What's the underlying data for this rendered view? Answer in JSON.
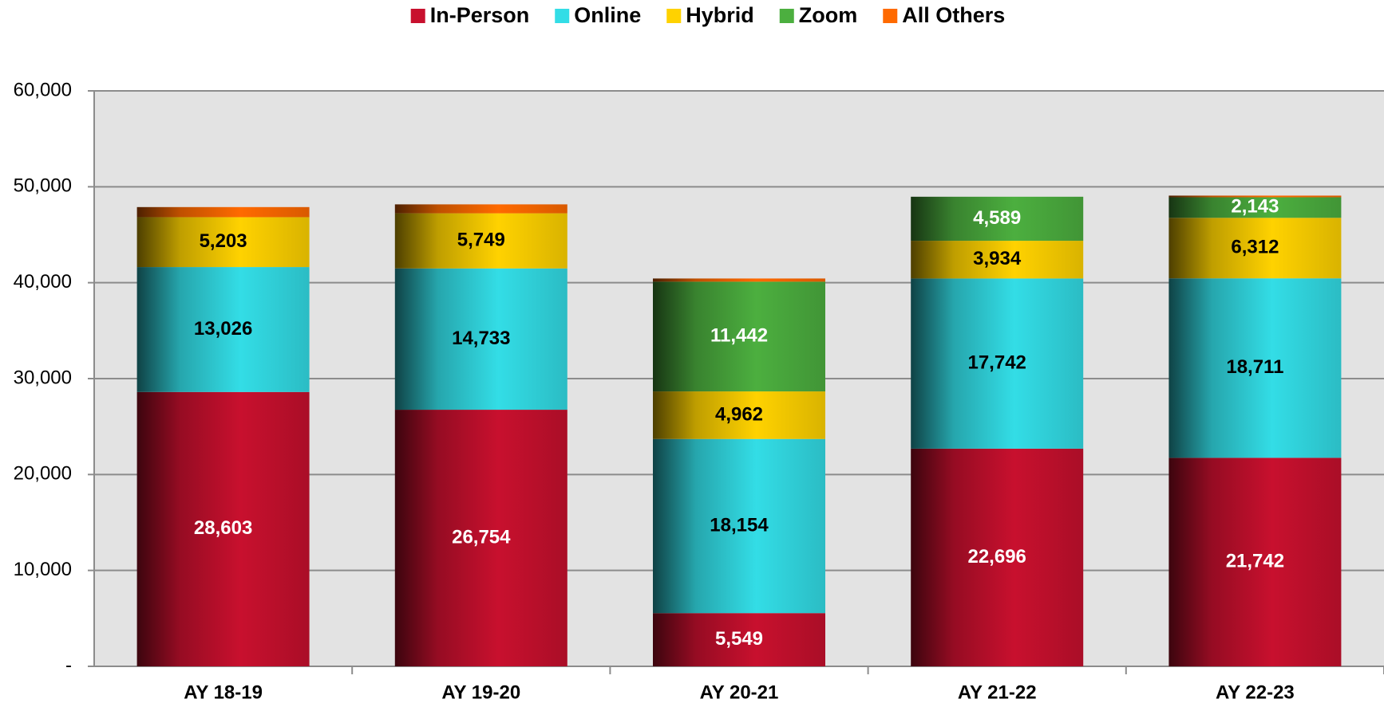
{
  "chart_data": {
    "type": "stacked_bar",
    "categories": [
      "AY 18-19",
      "AY 19-20",
      "AY 20-21",
      "AY 21-22",
      "AY 22-23"
    ],
    "series": [
      {
        "name": "In-Person",
        "color": "#c8102e",
        "label_color": "#ffffff",
        "values": [
          28603,
          26754,
          5549,
          22696,
          21742
        ],
        "value_labels": [
          "28,603",
          "26,754",
          "5,549",
          "22,696",
          "21,742"
        ]
      },
      {
        "name": "Online",
        "color": "#33dde6",
        "label_color": "#000000",
        "values": [
          13026,
          14733,
          18154,
          17742,
          18711
        ],
        "value_labels": [
          "13,026",
          "14,733",
          "18,154",
          "17,742",
          "18,711"
        ]
      },
      {
        "name": "Hybrid",
        "color": "#ffd200",
        "label_color": "#000000",
        "values": [
          5203,
          5749,
          4962,
          3934,
          6312
        ],
        "value_labels": [
          "5,203",
          "5,749",
          "4,962",
          "3,934",
          "6,312"
        ]
      },
      {
        "name": "Zoom",
        "color": "#4caf3f",
        "label_color": "#ffffff",
        "values": [
          null,
          null,
          11442,
          4589,
          2143
        ],
        "value_labels": [
          null,
          null,
          "11,442",
          "4,589",
          "2,143"
        ]
      },
      {
        "name": "All Others",
        "color": "#ff6a00",
        "values": [
          1050,
          930,
          330,
          null,
          170
        ]
      }
    ],
    "ylim": [
      0,
      60000
    ],
    "yticks": [
      {
        "value": 0,
        "label": "-"
      },
      {
        "value": 10000,
        "label": "10,000"
      },
      {
        "value": 20000,
        "label": "20,000"
      },
      {
        "value": 30000,
        "label": "30,000"
      },
      {
        "value": 40000,
        "label": "40,000"
      },
      {
        "value": 50000,
        "label": "50,000"
      },
      {
        "value": 60000,
        "label": "60,000"
      }
    ],
    "grid": true,
    "legend": "top"
  }
}
